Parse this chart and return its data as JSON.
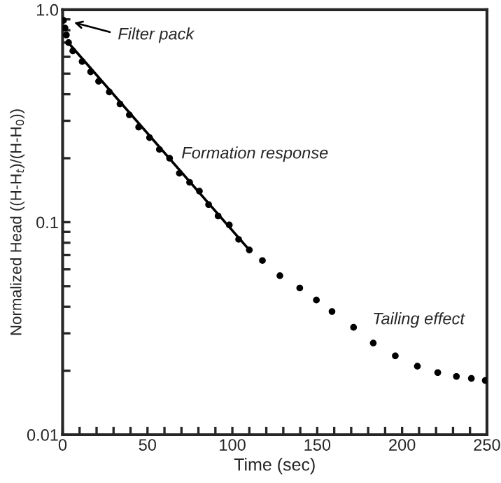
{
  "chart_data": {
    "type": "scatter",
    "xlabel": "Time (sec)",
    "ylabel": "Normalized Head ((H-H$_{t}$)/(H-H$_{0}$))",
    "log": "y",
    "grid": false,
    "legend": false,
    "xlim": [
      0,
      250
    ],
    "ylim": [
      0.01,
      1
    ],
    "xticks": [
      0,
      {
        "value": 10,
        "label": null
      },
      {
        "value": 20,
        "label": null
      },
      {
        "value": 30,
        "label": null
      },
      {
        "value": 40,
        "label": null
      },
      50,
      {
        "value": 60,
        "label": null
      },
      {
        "value": 70,
        "label": null
      },
      {
        "value": 80,
        "label": null
      },
      {
        "value": 90,
        "label": null
      },
      100,
      {
        "value": 110,
        "label": null
      },
      {
        "value": 120,
        "label": null
      },
      {
        "value": 130,
        "label": null
      },
      {
        "value": 140,
        "label": null
      },
      150,
      {
        "value": 160,
        "label": null
      },
      {
        "value": 170,
        "label": null
      },
      {
        "value": 180,
        "label": null
      },
      {
        "value": 190,
        "label": null
      },
      200,
      {
        "value": 210,
        "label": null
      },
      {
        "value": 220,
        "label": null
      },
      {
        "value": 230,
        "label": null
      },
      {
        "value": 240,
        "label": null
      },
      250
    ],
    "yticks": [
      0.01,
      {
        "value": 0.02,
        "label": null
      },
      {
        "value": 0.03,
        "label": null
      },
      {
        "value": 0.04,
        "label": null
      },
      {
        "value": 0.05,
        "label": null
      },
      {
        "value": 0.06,
        "label": null
      },
      {
        "value": 0.07,
        "label": null
      },
      {
        "value": 0.08,
        "label": null
      },
      {
        "value": 0.09,
        "label": null
      },
      0.1,
      {
        "value": 0.2,
        "label": null
      },
      {
        "value": 0.3,
        "label": null
      },
      {
        "value": 0.4,
        "label": null
      },
      {
        "value": 0.5,
        "label": null
      },
      {
        "value": 0.6,
        "label": null
      },
      {
        "value": 0.7,
        "label": null
      },
      {
        "value": 0.8,
        "label": null
      },
      {
        "value": 0.9,
        "label": null
      },
      {
        "value": 1,
        "label": "1.0"
      }
    ],
    "series": [
      {
        "marker": "circle",
        "color": "#000000",
        "x": [
          0.5,
          1.4,
          2.2,
          3.5,
          6,
          11.5,
          16.5,
          21.2,
          27.5,
          33.8,
          39.3,
          44.8,
          51.2,
          57,
          63,
          68.8,
          74.8,
          80.6,
          86,
          91.6,
          98.2,
          103.7,
          110,
          117.7,
          128,
          139.7,
          149.5,
          158.7,
          171.4,
          183,
          196,
          209,
          221,
          232,
          240.8,
          249
        ],
        "values": [
          0.89,
          0.82,
          0.76,
          0.7,
          0.64,
          0.57,
          0.51,
          0.46,
          0.41,
          0.36,
          0.32,
          0.28,
          0.25,
          0.22,
          0.2,
          0.17,
          0.154,
          0.14,
          0.121,
          0.107,
          0.097,
          0.083,
          0.074,
          0.066,
          0.056,
          0.049,
          0.043,
          0.038,
          0.032,
          0.027,
          0.0235,
          0.021,
          0.0196,
          0.0188,
          0.0184,
          0.018
        ]
      },
      {
        "type": "line",
        "marker": "none",
        "color": "#000000",
        "x": [
          4,
          110
        ],
        "values": [
          0.69,
          0.074
        ]
      }
    ],
    "annotations": [
      "Filter pack",
      "Formation response",
      "Tailing effect"
    ]
  }
}
